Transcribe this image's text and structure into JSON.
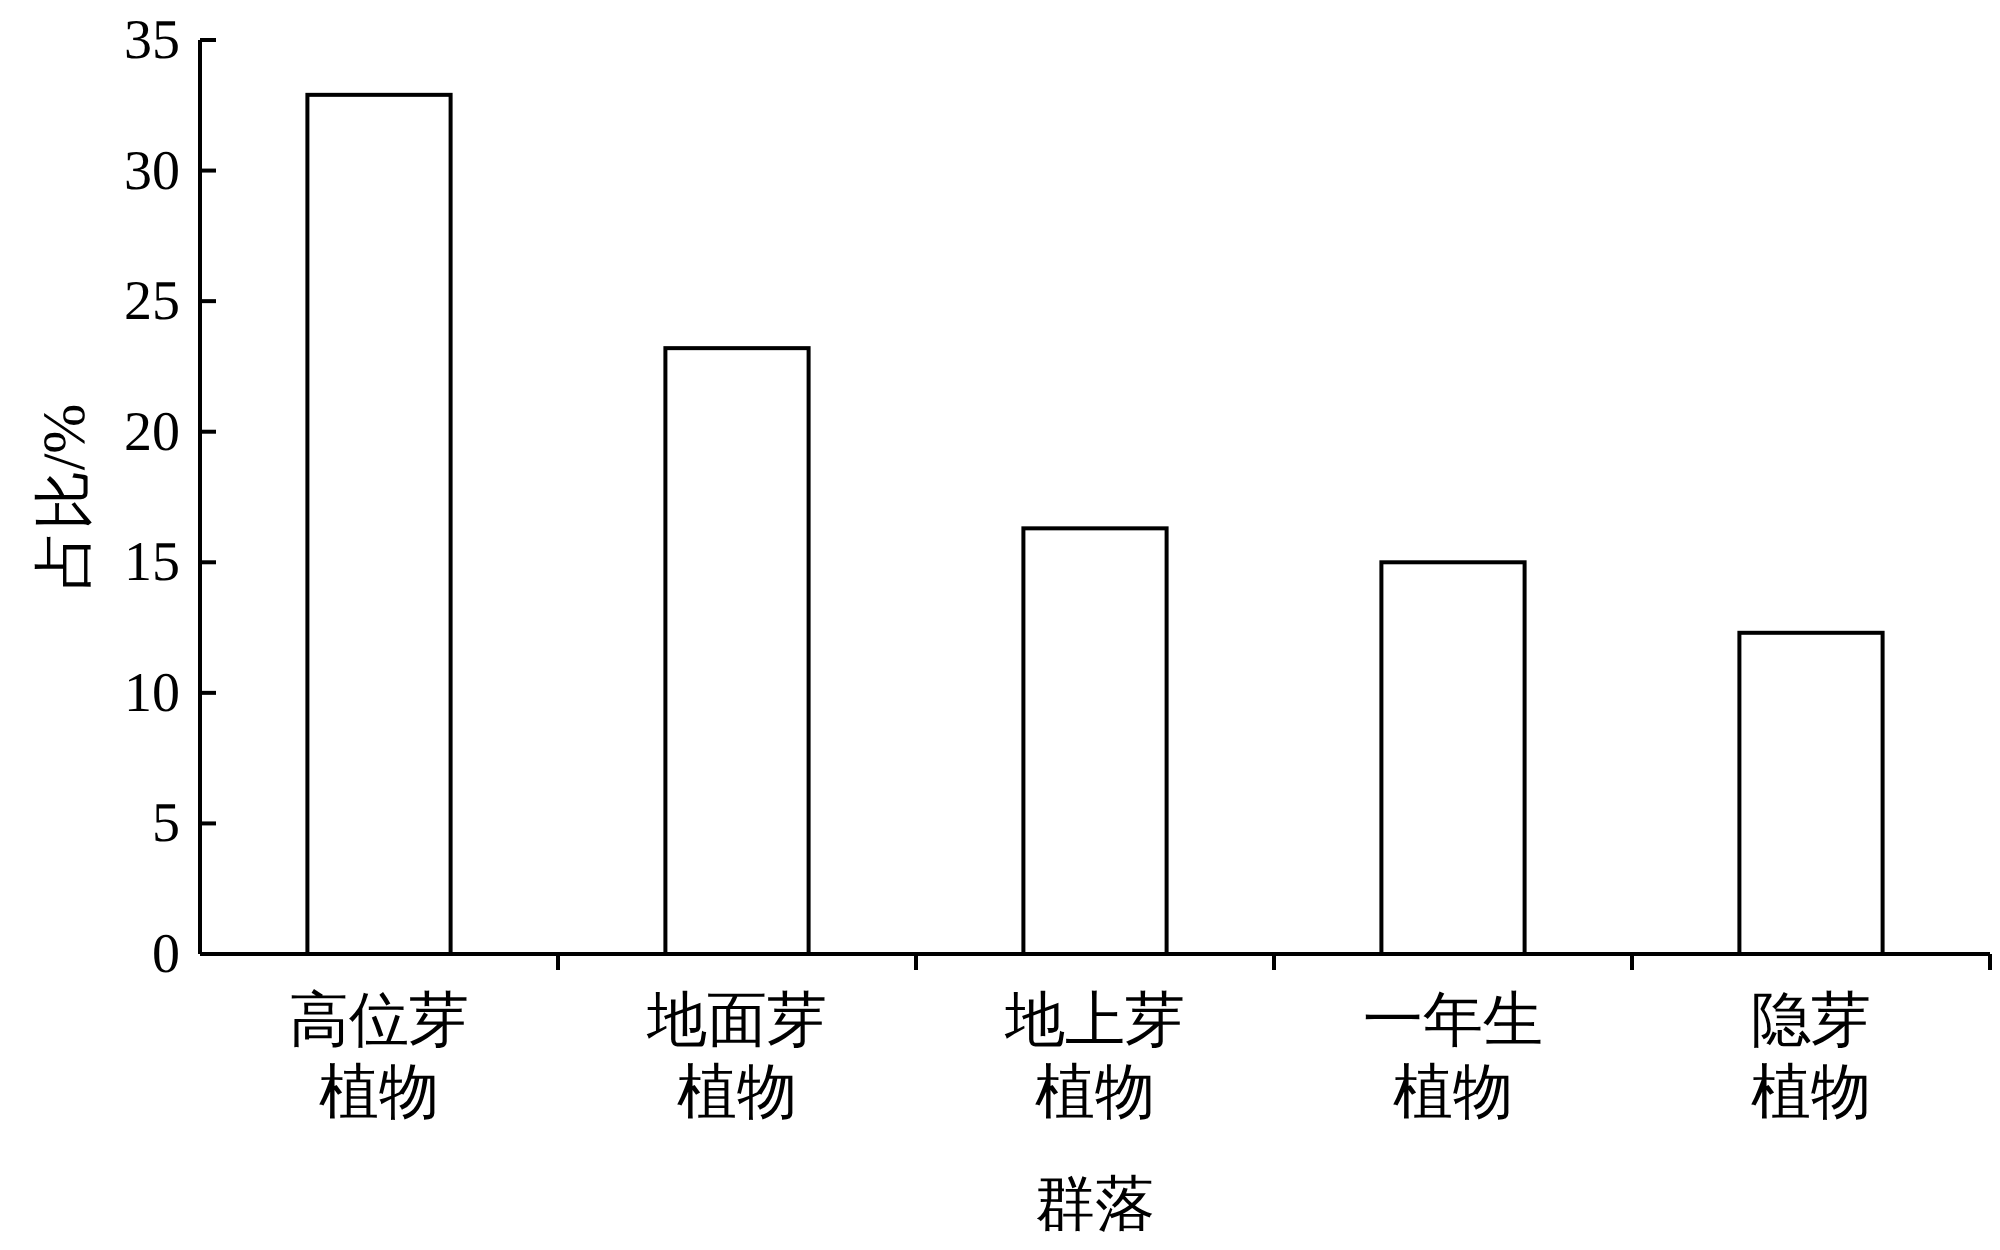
{
  "chart_data": {
    "type": "bar",
    "xlabel": "群落",
    "ylabel": "占比/%",
    "categories": [
      "高位芽植物",
      "地面芽植物",
      "地上芽植物",
      "一年生植物",
      "隐芽植物"
    ],
    "values": [
      32.9,
      23.2,
      16.3,
      15.0,
      12.3
    ],
    "color": "#ffffff",
    "ylim": [
      0,
      35
    ],
    "yticks": [
      0,
      5,
      10,
      15,
      20,
      25,
      30,
      35
    ],
    "grid": false
  }
}
